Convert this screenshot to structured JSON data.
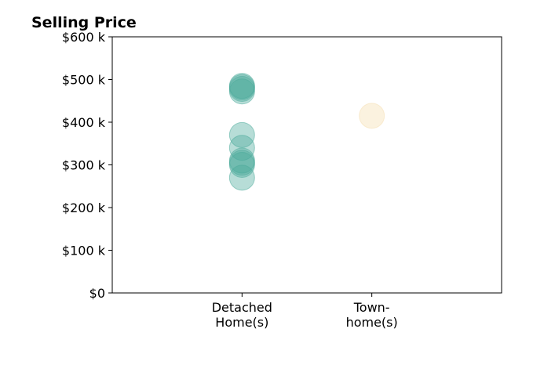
{
  "chart_data": {
    "type": "scatter",
    "title": "Selling Price",
    "xlabel": "",
    "ylabel": "",
    "categories": [
      "Detached\nHome(s)",
      "Town-\nhome(s)"
    ],
    "ylim": [
      0,
      600000
    ],
    "ytick_values": [
      0,
      100000,
      200000,
      300000,
      400000,
      500000,
      600000
    ],
    "ytick_labels": [
      "$0",
      "$100 k",
      "$200 k",
      "$300 k",
      "$400 k",
      "$500 k",
      "$600 k"
    ],
    "grid": false,
    "legend": "none",
    "colors": {
      "detached": "#4aa99a",
      "townhome": "#f5deb0",
      "axis": "#000000"
    },
    "series": [
      {
        "category": "Detached\nHome(s)",
        "color": "#4aa99a",
        "values": [
          485000,
          482000,
          478000,
          472000,
          370000,
          340000,
          310000,
          305000,
          300000,
          270000
        ]
      },
      {
        "category": "Town-\nhome(s)",
        "color": "#f5deb0",
        "values": [
          415000
        ]
      }
    ]
  }
}
